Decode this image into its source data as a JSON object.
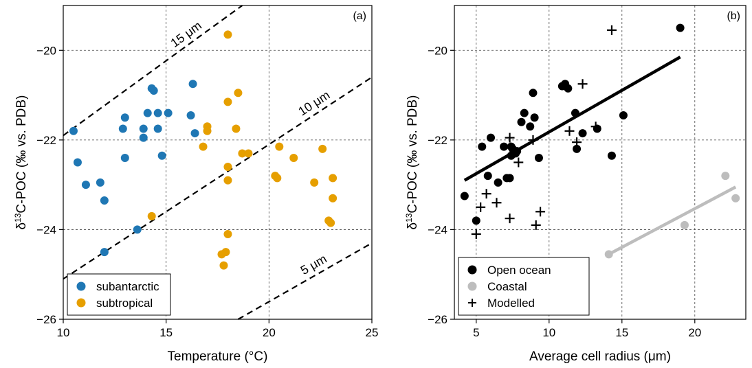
{
  "chart_data": [
    {
      "panel_label": "(a)",
      "type": "scatter",
      "xlabel": "Temperature (°C)",
      "ylabel_prefix": "δ",
      "ylabel_sup": "13",
      "ylabel_main": "C-POC (‰ vs. PDB)",
      "xlim": [
        10,
        25
      ],
      "ylim": [
        -26,
        -19
      ],
      "xticks": [
        "10",
        "15",
        "20",
        "25"
      ],
      "yticks": [
        "−20",
        "−22",
        "−24",
        "−26"
      ],
      "grid": true,
      "legend_position": "lower-left",
      "series": [
        {
          "name": "subantarctic",
          "color": "#1f77b4",
          "points": [
            [
              10.5,
              -21.8
            ],
            [
              10.7,
              -22.5
            ],
            [
              11.1,
              -23.0
            ],
            [
              11.8,
              -22.95
            ],
            [
              12.0,
              -23.35
            ],
            [
              12.0,
              -24.5
            ],
            [
              12.9,
              -21.75
            ],
            [
              13.0,
              -21.5
            ],
            [
              13.0,
              -22.4
            ],
            [
              13.6,
              -24.0
            ],
            [
              13.9,
              -21.75
            ],
            [
              13.9,
              -21.95
            ],
            [
              14.1,
              -21.4
            ],
            [
              14.3,
              -20.85
            ],
            [
              14.4,
              -20.9
            ],
            [
              14.6,
              -21.4
            ],
            [
              14.6,
              -21.75
            ],
            [
              14.8,
              -22.35
            ],
            [
              15.1,
              -21.4
            ],
            [
              16.2,
              -21.45
            ],
            [
              16.3,
              -20.75
            ],
            [
              16.4,
              -21.85
            ]
          ]
        },
        {
          "name": "subtropical",
          "color": "#e69f00",
          "points": [
            [
              14.3,
              -23.7
            ],
            [
              16.8,
              -22.15
            ],
            [
              17.0,
              -21.7
            ],
            [
              17.0,
              -21.8
            ],
            [
              17.7,
              -24.55
            ],
            [
              17.8,
              -24.8
            ],
            [
              17.9,
              -24.5
            ],
            [
              18.0,
              -19.65
            ],
            [
              18.0,
              -21.15
            ],
            [
              18.0,
              -22.6
            ],
            [
              18.0,
              -22.9
            ],
            [
              18.0,
              -24.1
            ],
            [
              18.4,
              -21.75
            ],
            [
              18.5,
              -20.95
            ],
            [
              18.7,
              -22.3
            ],
            [
              19.0,
              -22.3
            ],
            [
              20.3,
              -22.8
            ],
            [
              20.4,
              -22.85
            ],
            [
              20.5,
              -22.15
            ],
            [
              21.2,
              -22.4
            ],
            [
              22.2,
              -22.95
            ],
            [
              22.6,
              -22.2
            ],
            [
              22.9,
              -23.8
            ],
            [
              23.0,
              -23.85
            ],
            [
              23.1,
              -22.85
            ],
            [
              23.1,
              -23.3
            ]
          ]
        }
      ],
      "reference_lines": [
        {
          "label": "15 μm",
          "x": [
            10,
            18.7
          ],
          "y": [
            -21.9,
            -19.0
          ]
        },
        {
          "label": "10 μm",
          "x": [
            10,
            25
          ],
          "y": [
            -25.1,
            -20.6
          ]
        },
        {
          "label": "5 μm",
          "x": [
            18.5,
            25
          ],
          "y": [
            -26.0,
            -24.3
          ]
        }
      ]
    },
    {
      "panel_label": "(b)",
      "type": "scatter",
      "xlabel": "Average cell radius (μm)",
      "ylabel_prefix": "δ",
      "ylabel_sup": "13",
      "ylabel_main": "C-POC (‰ vs. PDB)",
      "xlim": [
        3.5,
        23.5
      ],
      "ylim": [
        -26,
        -19
      ],
      "xticks": [
        "5",
        "10",
        "15",
        "20"
      ],
      "yticks": [
        "−20",
        "−22",
        "−24",
        "−26"
      ],
      "grid": true,
      "legend_position": "lower-left",
      "series": [
        {
          "name": "Open ocean",
          "color": "#000000",
          "marker": "circle",
          "points": [
            [
              4.2,
              -23.25
            ],
            [
              5.0,
              -23.8
            ],
            [
              5.4,
              -22.15
            ],
            [
              5.8,
              -22.8
            ],
            [
              6.0,
              -21.95
            ],
            [
              6.5,
              -22.95
            ],
            [
              6.9,
              -22.15
            ],
            [
              7.1,
              -22.85
            ],
            [
              7.3,
              -22.85
            ],
            [
              7.4,
              -22.15
            ],
            [
              7.4,
              -22.35
            ],
            [
              7.5,
              -22.2
            ],
            [
              7.7,
              -22.3
            ],
            [
              7.8,
              -22.25
            ],
            [
              8.1,
              -21.6
            ],
            [
              8.3,
              -21.4
            ],
            [
              8.7,
              -21.7
            ],
            [
              8.9,
              -20.95
            ],
            [
              9.0,
              -21.5
            ],
            [
              9.3,
              -22.4
            ],
            [
              10.9,
              -20.8
            ],
            [
              11.1,
              -20.75
            ],
            [
              11.3,
              -20.85
            ],
            [
              11.8,
              -21.4
            ],
            [
              11.9,
              -22.2
            ],
            [
              12.3,
              -21.85
            ],
            [
              13.3,
              -21.75
            ],
            [
              14.3,
              -22.35
            ],
            [
              15.1,
              -21.45
            ],
            [
              19.0,
              -19.5
            ]
          ]
        },
        {
          "name": "Coastal",
          "color": "#bdbdbd",
          "marker": "circle",
          "points": [
            [
              14.1,
              -24.55
            ],
            [
              19.3,
              -23.9
            ],
            [
              22.1,
              -22.8
            ],
            [
              22.8,
              -23.3
            ]
          ]
        },
        {
          "name": "Modelled",
          "color": "#000000",
          "marker": "plus",
          "points": [
            [
              5.0,
              -24.1
            ],
            [
              5.3,
              -23.5
            ],
            [
              5.7,
              -23.2
            ],
            [
              6.4,
              -23.4
            ],
            [
              7.3,
              -21.95
            ],
            [
              7.3,
              -23.75
            ],
            [
              7.9,
              -22.5
            ],
            [
              8.9,
              -22.0
            ],
            [
              9.1,
              -23.9
            ],
            [
              9.4,
              -23.6
            ],
            [
              11.4,
              -21.8
            ],
            [
              11.9,
              -22.05
            ],
            [
              12.3,
              -20.75
            ],
            [
              13.2,
              -21.7
            ],
            [
              14.3,
              -19.55
            ]
          ]
        }
      ],
      "fit_lines": [
        {
          "name": "Open ocean fit",
          "color": "#000000",
          "x": [
            4.2,
            19.0
          ],
          "y": [
            -22.9,
            -20.15
          ]
        },
        {
          "name": "Coastal fit",
          "color": "#bdbdbd",
          "x": [
            14.1,
            22.8
          ],
          "y": [
            -24.55,
            -23.05
          ]
        }
      ]
    }
  ]
}
